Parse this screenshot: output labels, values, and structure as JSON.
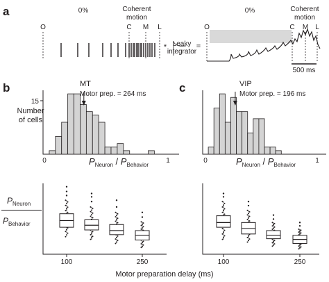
{
  "panel_a": {
    "letter": "a",
    "pct_left": "0%",
    "pct_right": "0%",
    "coherent_motion_left": [
      "Coherent",
      "motion"
    ],
    "coherent_motion_right": [
      "Coherent",
      "motion"
    ],
    "event_markers": [
      "O",
      "C",
      "M",
      "L"
    ],
    "operator_times": "*",
    "operator_equals": "=",
    "leaky_integrator": [
      "Leaky",
      "integrator"
    ],
    "scale_bar_label": "500 ms"
  },
  "panel_b": {
    "letter": "b",
    "title": "MT",
    "motor_prep": "Motor prep. = 264 ms",
    "ylabel": [
      "Number",
      "of cells"
    ]
  },
  "panel_c": {
    "letter": "c",
    "title": "VIP",
    "motor_prep": "Motor prep. = 196 ms"
  },
  "ratio_label": {
    "p_top": "P",
    "sub_top": "Neuron",
    "p_bottom": "P",
    "sub_bottom": "Behavior"
  },
  "xlabel_bottom": "Motor preparation delay (ms)",
  "hist_x_ticks": [
    "0",
    "1"
  ],
  "hist_y_ticks": [
    "15"
  ],
  "box_x_ticks": [
    "100",
    "250"
  ],
  "chart_data": [
    {
      "type": "bar",
      "title": "MT",
      "annotation": "Motor prep. = 264 ms",
      "xlabel": "PNeuron / PBehavior",
      "ylabel": "Number of cells",
      "bin_edges": [
        0.05,
        0.1,
        0.15,
        0.2,
        0.25,
        0.3,
        0.35,
        0.4,
        0.45,
        0.5,
        0.55,
        0.6,
        0.65,
        0.7,
        0.75,
        0.8,
        0.85,
        0.9
      ],
      "values": [
        1,
        5,
        9,
        17,
        17,
        14,
        12,
        11,
        9,
        2,
        2,
        3,
        1,
        0,
        0,
        0,
        1
      ],
      "median_arrow": 0.33,
      "xlim": [
        0,
        1.1
      ],
      "ylim": [
        0,
        18
      ],
      "y_ticks": [
        15
      ],
      "x_ticks": [
        0,
        1
      ]
    },
    {
      "type": "bar",
      "title": "VIP",
      "annotation": "Motor prep. = 196 ms",
      "xlabel": "PNeuron / PBehavior",
      "bin_edges": [
        0.05,
        0.1,
        0.15,
        0.2,
        0.25,
        0.3,
        0.35,
        0.4,
        0.45,
        0.5,
        0.55,
        0.6,
        0.65,
        0.7
      ],
      "values": [
        2,
        13,
        17,
        9,
        16,
        12,
        12,
        6,
        10,
        10,
        2,
        2,
        1
      ],
      "median_arrow": 0.29,
      "xlim": [
        0,
        1.1
      ],
      "ylim": [
        0,
        18
      ],
      "x_ticks": [
        0,
        1
      ]
    },
    {
      "type": "box",
      "panel": "MT",
      "xlabel": "Motor preparation delay (ms)",
      "ylabel": "PNeuron / PBehavior",
      "categories": [
        100,
        150,
        200,
        250
      ],
      "x_ticks": [
        100,
        250
      ],
      "boxes": [
        {
          "whisker_low": 0.26,
          "q1": 0.4,
          "median": 0.5,
          "q3": 0.6,
          "whisker_high": 0.8,
          "outliers": [
            0.87,
            0.93,
            1.0
          ]
        },
        {
          "whisker_low": 0.22,
          "q1": 0.36,
          "median": 0.43,
          "q3": 0.51,
          "whisker_high": 0.7,
          "outliers": [
            0.78,
            0.85,
            0.9
          ]
        },
        {
          "whisker_low": 0.16,
          "q1": 0.29,
          "median": 0.35,
          "q3": 0.44,
          "whisker_high": 0.62,
          "outliers": [
            0.7,
            0.8
          ]
        },
        {
          "whisker_low": 0.1,
          "q1": 0.21,
          "median": 0.28,
          "q3": 0.35,
          "whisker_high": 0.48,
          "outliers": [
            0.55,
            0.62
          ]
        }
      ],
      "ylim": [
        0,
        1.05
      ]
    },
    {
      "type": "box",
      "panel": "VIP",
      "xlabel": "Motor preparation delay (ms)",
      "categories": [
        100,
        150,
        200,
        250
      ],
      "x_ticks": [
        100,
        250
      ],
      "boxes": [
        {
          "whisker_low": 0.22,
          "q1": 0.4,
          "median": 0.47,
          "q3": 0.57,
          "whisker_high": 0.78,
          "outliers": [
            0.85,
            0.9
          ]
        },
        {
          "whisker_low": 0.18,
          "q1": 0.3,
          "median": 0.38,
          "q3": 0.47,
          "whisker_high": 0.65,
          "outliers": [
            0.72,
            0.78
          ]
        },
        {
          "whisker_low": 0.12,
          "q1": 0.23,
          "median": 0.28,
          "q3": 0.35,
          "whisker_high": 0.47,
          "outliers": [
            0.52,
            0.58
          ]
        },
        {
          "whisker_low": 0.08,
          "q1": 0.16,
          "median": 0.22,
          "q3": 0.28,
          "whisker_high": 0.37,
          "outliers": [
            0.42,
            0.47
          ]
        }
      ],
      "ylim": [
        0,
        1.05
      ]
    }
  ]
}
